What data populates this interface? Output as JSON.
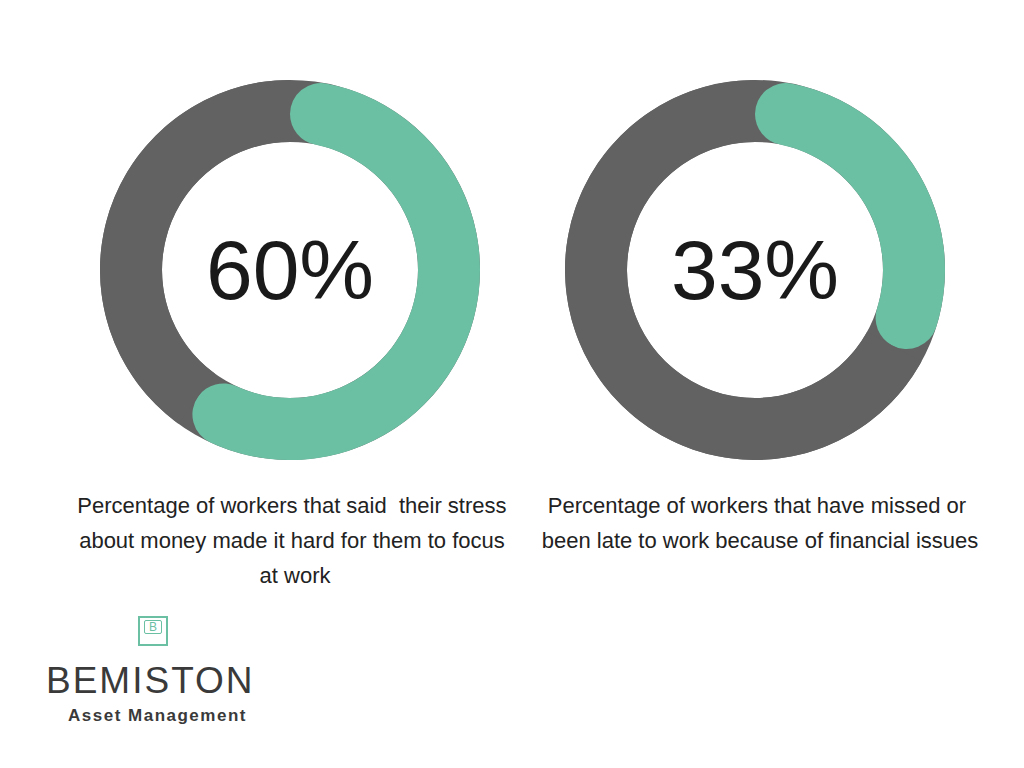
{
  "chart_data": [
    {
      "type": "pie",
      "title": "Percentage of workers that said  their stress about money made it hard for them to focus at work",
      "values": [
        60,
        40
      ],
      "value_labels": [
        "60%",
        null
      ],
      "colors": [
        "#6bbfa3",
        "#626262"
      ],
      "data_labels": true
    },
    {
      "type": "pie",
      "title": "Percentage of workers that have missed or been late to work because of financial issues",
      "values": [
        33,
        67
      ],
      "value_labels": [
        "33%",
        null
      ],
      "colors": [
        "#6bbfa3",
        "#626262"
      ],
      "data_labels": true
    }
  ],
  "logo": {
    "mark": "B",
    "name": "BEMISTON",
    "tagline": "Asset Management"
  }
}
